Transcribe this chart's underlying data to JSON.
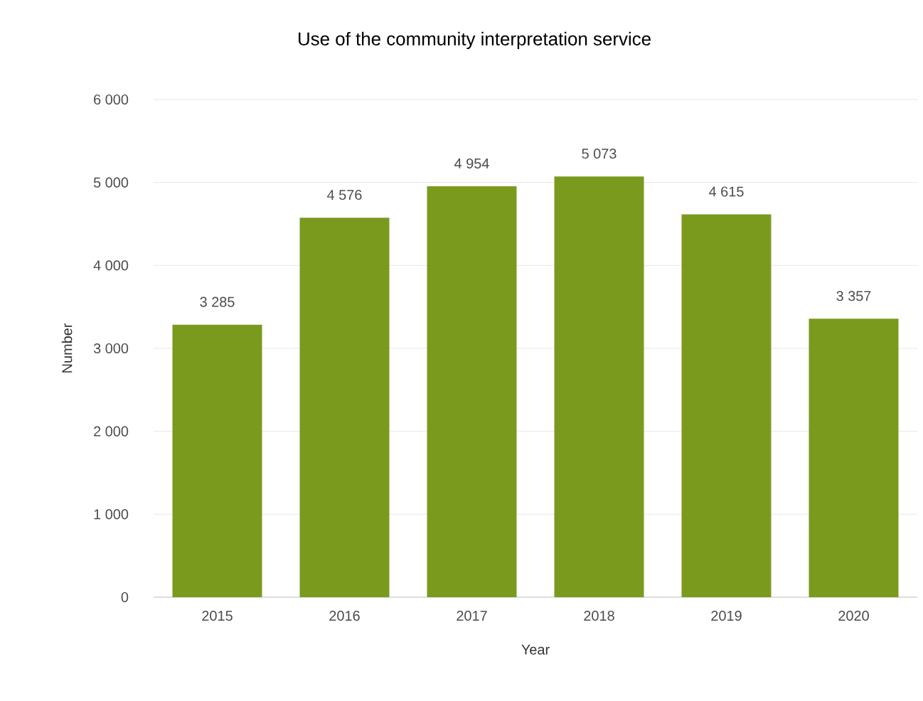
{
  "chart_data": {
    "type": "bar",
    "title": "Use of the community interpretation service",
    "xlabel": "Year",
    "ylabel": "Number",
    "categories": [
      "2015",
      "2016",
      "2017",
      "2018",
      "2019",
      "2020"
    ],
    "values": [
      3285,
      4576,
      4954,
      5073,
      4615,
      3357
    ],
    "value_labels": [
      "3 285",
      "4 576",
      "4 954",
      "5 073",
      "4 615",
      "3 357"
    ],
    "color": "#7a9a1e",
    "ylim": [
      0,
      6000
    ],
    "yticks": [
      {
        "value": 0,
        "label": "0"
      },
      {
        "value": 1000,
        "label": "1 000"
      },
      {
        "value": 2000,
        "label": "2 000"
      },
      {
        "value": 3000,
        "label": "3 000"
      },
      {
        "value": 4000,
        "label": "4 000"
      },
      {
        "value": 5000,
        "label": "5 000"
      },
      {
        "value": 6000,
        "label": "6 000"
      }
    ],
    "grid": "y"
  }
}
